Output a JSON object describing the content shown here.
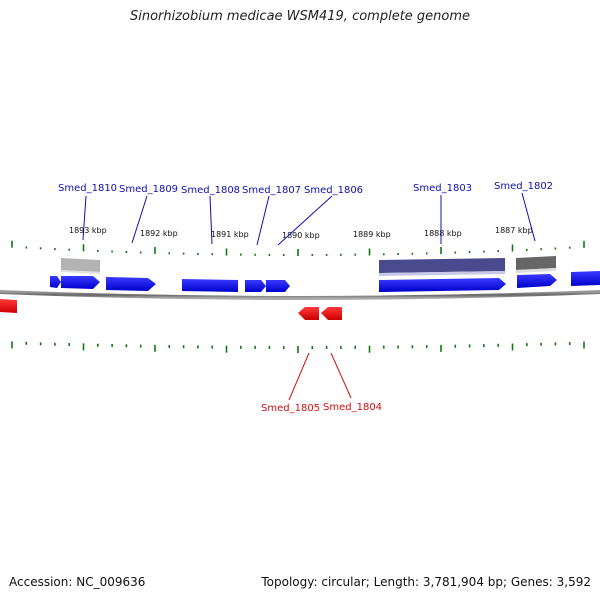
{
  "title": "Sinorhizobium medicae WSM419, complete genome",
  "footer": {
    "accession_label": "Accession: NC_009636",
    "summary": "Topology: circular; Length: 3,781,904 bp; Genes: 3,592"
  },
  "colors": {
    "forward_gene": "#1a1aff",
    "reverse_gene": "#ff1a1a",
    "forward_label": "#1010b0",
    "reverse_label": "#d01010",
    "tick": "#117711",
    "backbone": "#7a7a7a",
    "feature_gray": "#b3b3b3",
    "feature_dark": "#666666",
    "feature_navy": "#4a4a8f"
  },
  "kbp_labels": [
    "1893 kbp",
    "1892 kbp",
    "1891 kbp",
    "1890 kbp",
    "1889 kbp",
    "1888 kbp",
    "1887 kbp"
  ],
  "forward_labels": [
    "Smed_1810",
    "Smed_1809",
    "Smed_1808",
    "Smed_1807",
    "Smed_1806",
    "Smed_1803",
    "Smed_1802"
  ],
  "reverse_labels": [
    "Smed_1805",
    "Smed_1804"
  ]
}
